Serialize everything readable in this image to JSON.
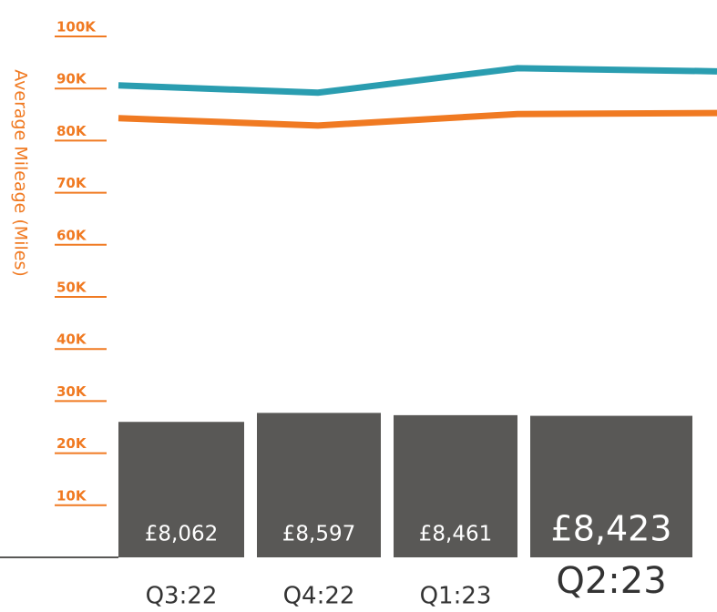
{
  "chart_data": {
    "type": "bar_line",
    "y_axis_label": "Average Mileage (Miles)",
    "categories": [
      "Q3:22",
      "Q4:22",
      "Q1:23",
      "Q2:23"
    ],
    "bars": {
      "values": [
        8062,
        8597,
        8461,
        8423
      ],
      "value_labels": [
        "£8,062",
        "£8,597",
        "£8,461",
        "£8,423"
      ],
      "color": "#595856",
      "axis": "y2"
    },
    "series": [
      {
        "color": "#2a9db0",
        "values": [
          90600,
          89200,
          93900,
          93300
        ]
      },
      {
        "color": "#f07a22",
        "values": [
          84300,
          82900,
          85100,
          85300
        ]
      }
    ],
    "ylim": [
      0,
      100000
    ],
    "yticks": [
      {
        "value": 10000,
        "label": "10K"
      },
      {
        "value": 20000,
        "label": "20K"
      },
      {
        "value": 30000,
        "label": "30K"
      },
      {
        "value": 40000,
        "label": "40K"
      },
      {
        "value": 50000,
        "label": "50K"
      },
      {
        "value": 60000,
        "label": "60K"
      },
      {
        "value": 70000,
        "label": "70K"
      },
      {
        "value": 80000,
        "label": "80K"
      },
      {
        "value": 90000,
        "label": "90K"
      },
      {
        "value": 100000,
        "label": "100K"
      }
    ],
    "y2lim": [
      0,
      31000
    ]
  }
}
